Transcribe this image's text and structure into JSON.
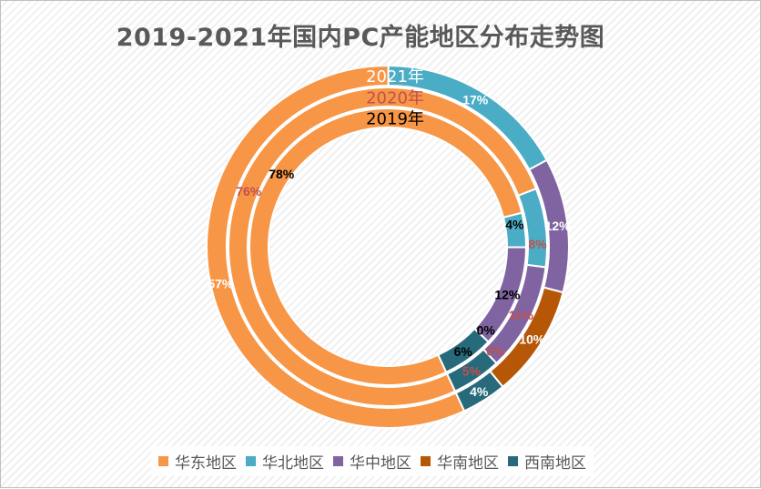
{
  "chart_data": {
    "type": "donut",
    "title": "2019-2021年国内PC产能地区分布走势图",
    "categories": [
      "华东地区",
      "华北地区",
      "华中地区",
      "华南地区",
      "西南地区"
    ],
    "colors": [
      "#f79646",
      "#4bacc6",
      "#8064a2",
      "#b65708",
      "#276a7c"
    ],
    "series": [
      {
        "name": "2021年",
        "values": [
          57,
          17,
          12,
          10,
          4
        ],
        "labels": [
          "57%",
          "17%",
          "12%",
          "10%",
          "4%"
        ],
        "label_color": "#ffffff"
      },
      {
        "name": "2020年",
        "values": [
          76,
          8,
          11,
          0,
          5
        ],
        "labels": [
          "76%",
          "8%",
          "11%",
          "0%",
          "5%"
        ],
        "label_color": "#c0504d"
      },
      {
        "name": "2019年",
        "values": [
          78,
          4,
          12,
          0,
          6
        ],
        "labels": [
          "78%",
          "4%",
          "12%",
          "0%",
          "6%"
        ],
        "label_color": "#000000"
      }
    ],
    "legend_position": "bottom"
  }
}
